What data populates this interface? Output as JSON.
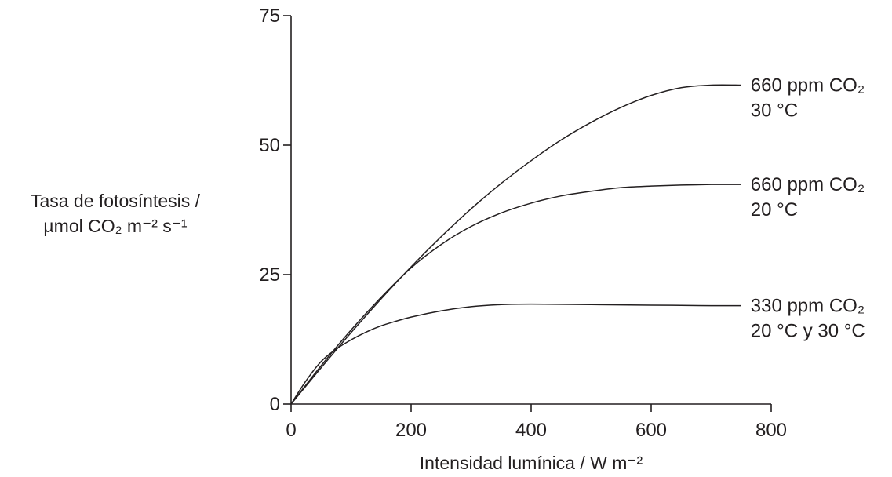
{
  "chart_data": {
    "type": "line",
    "title": "",
    "xlabel": "Intensidad lumínica / W m⁻²",
    "ylabel_line1": "Tasa de fotosíntesis /",
    "ylabel_line2": "µmol CO₂ m⁻² s⁻¹",
    "xlim": [
      0,
      800
    ],
    "ylim": [
      0,
      75
    ],
    "xticks": [
      0,
      200,
      400,
      600,
      800
    ],
    "yticks": [
      0,
      25,
      50,
      75
    ],
    "grid": false,
    "legend": "none",
    "line_color": "#231f20",
    "series": [
      {
        "label_line1": "660 ppm CO₂",
        "label_line2": "30 °C",
        "x": [
          0,
          50,
          100,
          150,
          200,
          250,
          300,
          350,
          400,
          450,
          500,
          550,
          600,
          650,
          700,
          750
        ],
        "y": [
          0,
          7,
          13.8,
          20.3,
          26.5,
          32.3,
          37.7,
          42.6,
          47.0,
          51.0,
          54.4,
          57.3,
          59.6,
          61.1,
          61.6,
          61.6
        ]
      },
      {
        "label_line1": "660 ppm CO₂",
        "label_line2": "20 °C",
        "x": [
          0,
          50,
          100,
          150,
          200,
          250,
          300,
          350,
          400,
          450,
          500,
          550,
          600,
          650,
          700,
          750
        ],
        "y": [
          0,
          7.4,
          14.3,
          20.6,
          26.3,
          30.8,
          34.3,
          36.9,
          38.8,
          40.2,
          41.1,
          41.8,
          42.1,
          42.3,
          42.4,
          42.4
        ]
      },
      {
        "label_line1": "330 ppm CO₂",
        "label_line2": "20 °C y 30 °C",
        "x": [
          0,
          25,
          50,
          75,
          100,
          125,
          150,
          175,
          200,
          250,
          300,
          350,
          400,
          500,
          600,
          700,
          750
        ],
        "y": [
          0,
          4.5,
          8.2,
          10.6,
          12.4,
          13.9,
          15.1,
          16.0,
          16.8,
          18.0,
          18.8,
          19.2,
          19.3,
          19.2,
          19.1,
          19.0,
          19.0
        ]
      }
    ]
  }
}
